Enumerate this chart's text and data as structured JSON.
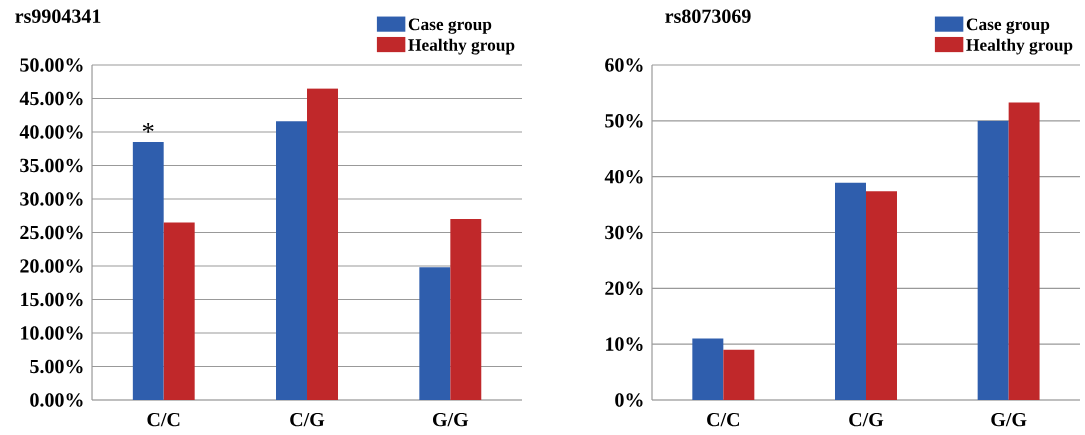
{
  "chart_data": [
    {
      "type": "bar",
      "title": "rs9904341",
      "categories": [
        "C/C",
        "C/G",
        "G/G"
      ],
      "series": [
        {
          "name": "Case group",
          "color": "#2f5ead",
          "values": [
            38.5,
            41.6,
            19.8
          ]
        },
        {
          "name": "Healthy group",
          "color": "#c0282a",
          "values": [
            26.5,
            46.5,
            27.0
          ]
        }
      ],
      "ylim": [
        0,
        50
      ],
      "yticks": [
        {
          "value": 0,
          "label": "0.00%"
        },
        {
          "value": 5,
          "label": "5.00%"
        },
        {
          "value": 10,
          "label": "10.00%"
        },
        {
          "value": 15,
          "label": "15.00%"
        },
        {
          "value": 20,
          "label": "20.00%"
        },
        {
          "value": 25,
          "label": "25.00%"
        },
        {
          "value": 30,
          "label": "30.00%"
        },
        {
          "value": 35,
          "label": "35.00%"
        },
        {
          "value": 40,
          "label": "40.00%"
        },
        {
          "value": 45,
          "label": "45.00%"
        },
        {
          "value": 50,
          "label": "50.00%"
        }
      ],
      "grid": "y",
      "legend": "top right",
      "annotations": [
        {
          "text": "*",
          "x": "C/C",
          "y": 38.5
        }
      ]
    },
    {
      "type": "bar",
      "title": "rs8073069",
      "categories": [
        "C/C",
        "C/G",
        "G/G"
      ],
      "series": [
        {
          "name": "Case group",
          "color": "#2f5ead",
          "values": [
            11.0,
            38.9,
            50.0
          ]
        },
        {
          "name": "Healthy group",
          "color": "#c0282a",
          "values": [
            9.0,
            37.4,
            53.3
          ]
        }
      ],
      "ylim": [
        0,
        60
      ],
      "yticks": [
        {
          "value": 0,
          "label": "0%"
        },
        {
          "value": 10,
          "label": "10%"
        },
        {
          "value": 20,
          "label": "20%"
        },
        {
          "value": 30,
          "label": "30%"
        },
        {
          "value": 40,
          "label": "40%"
        },
        {
          "value": 50,
          "label": "50%"
        },
        {
          "value": 60,
          "label": "60%"
        }
      ],
      "grid": "y",
      "legend": "top right"
    }
  ]
}
